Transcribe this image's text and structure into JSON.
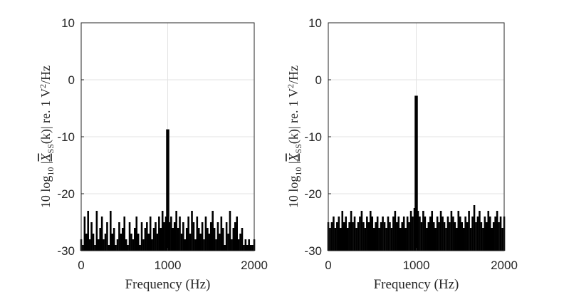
{
  "chart_data": [
    {
      "type": "bar",
      "xlabel": "Frequency (Hz)",
      "ylabel": "10 log10 |X_SS(k)| re. 1 V²/Hz",
      "xlim": [
        0,
        2000
      ],
      "ylim": [
        -30,
        10
      ],
      "xticks": [
        "0",
        "1000",
        "2000"
      ],
      "yticks": [
        "-30",
        "-20",
        "-10",
        "0",
        "10"
      ],
      "grid": true,
      "peak": {
        "x": 1000,
        "y": -8.7
      },
      "noise_floor": [
        -30,
        -23
      ],
      "series": [
        {
          "x": [
            0,
            20,
            40,
            60,
            80,
            100,
            120,
            140,
            160,
            180,
            200,
            220,
            240,
            260,
            280,
            300,
            320,
            340,
            360,
            380,
            400,
            420,
            440,
            460,
            480,
            500,
            520,
            540,
            560,
            580,
            600,
            620,
            640,
            660,
            680,
            700,
            720,
            740,
            760,
            780,
            800,
            820,
            840,
            860,
            880,
            900,
            920,
            940,
            960,
            980,
            1000,
            1020,
            1040,
            1060,
            1080,
            1100,
            1120,
            1140,
            1160,
            1180,
            1200,
            1220,
            1240,
            1260,
            1280,
            1300,
            1320,
            1340,
            1360,
            1380,
            1400,
            1420,
            1440,
            1460,
            1480,
            1500,
            1520,
            1540,
            1560,
            1580,
            1600,
            1620,
            1640,
            1660,
            1680,
            1700,
            1720,
            1740,
            1760,
            1780,
            1800,
            1820,
            1840,
            1860,
            1880,
            1900,
            1920,
            1940,
            1960,
            1980,
            2000
          ],
          "values": [
            -28,
            -29,
            -24,
            -27,
            -23,
            -28,
            -25,
            -27,
            -29,
            -23,
            -28,
            -26,
            -24,
            -28,
            -27,
            -25,
            -29,
            -23,
            -27,
            -26,
            -29,
            -28,
            -25,
            -27,
            -26,
            -24,
            -28,
            -29,
            -25,
            -27,
            -28,
            -26,
            -24,
            -27,
            -29,
            -25,
            -28,
            -26,
            -25,
            -27,
            -24,
            -28,
            -26,
            -25,
            -27,
            -24,
            -26,
            -23,
            -25,
            -24,
            -8.7,
            -25,
            -24,
            -26,
            -25,
            -23,
            -26,
            -24,
            -27,
            -25,
            -28,
            -26,
            -24,
            -27,
            -23,
            -25,
            -28,
            -24,
            -26,
            -27,
            -25,
            -28,
            -24,
            -26,
            -27,
            -25,
            -23,
            -26,
            -28,
            -25,
            -27,
            -24,
            -26,
            -29,
            -25,
            -27,
            -23,
            -28,
            -26,
            -25,
            -24,
            -28,
            -27,
            -26,
            -29,
            -28,
            -29,
            -28,
            -29,
            -29,
            -28
          ]
        }
      ]
    },
    {
      "type": "bar",
      "xlabel": "Frequency (Hz)",
      "ylabel": "10 log10 |X_SS(k)| re. 1 V²/Hz",
      "xlim": [
        0,
        2000
      ],
      "ylim": [
        -30,
        10
      ],
      "xticks": [
        "0",
        "1000",
        "2000"
      ],
      "yticks": [
        "-30",
        "-20",
        "-10",
        "0",
        "10"
      ],
      "grid": true,
      "peak": {
        "x": 1000,
        "y": -2.8
      },
      "noise_floor": [
        -30,
        -22
      ],
      "series": [
        {
          "x": [
            0,
            20,
            40,
            60,
            80,
            100,
            120,
            140,
            160,
            180,
            200,
            220,
            240,
            260,
            280,
            300,
            320,
            340,
            360,
            380,
            400,
            420,
            440,
            460,
            480,
            500,
            520,
            540,
            560,
            580,
            600,
            620,
            640,
            660,
            680,
            700,
            720,
            740,
            760,
            780,
            800,
            820,
            840,
            860,
            880,
            900,
            920,
            940,
            960,
            980,
            1000,
            1020,
            1040,
            1060,
            1080,
            1100,
            1120,
            1140,
            1160,
            1180,
            1200,
            1220,
            1240,
            1260,
            1280,
            1300,
            1320,
            1340,
            1360,
            1380,
            1400,
            1420,
            1440,
            1460,
            1480,
            1500,
            1520,
            1540,
            1560,
            1580,
            1600,
            1620,
            1640,
            1660,
            1680,
            1700,
            1720,
            1740,
            1760,
            1780,
            1800,
            1820,
            1840,
            1860,
            1880,
            1900,
            1920,
            1940,
            1960,
            1980,
            2000
          ],
          "values": [
            -25,
            -26,
            -25,
            -24,
            -26,
            -25,
            -24,
            -26,
            -23,
            -25,
            -24,
            -26,
            -25,
            -23,
            -25,
            -24,
            -26,
            -25,
            -24,
            -23,
            -25,
            -26,
            -24,
            -25,
            -23,
            -24,
            -26,
            -25,
            -24,
            -26,
            -25,
            -24,
            -25,
            -26,
            -24,
            -25,
            -26,
            -24,
            -23,
            -25,
            -24,
            -26,
            -25,
            -24,
            -26,
            -24,
            -25,
            -23,
            -24,
            -22.5,
            -2.8,
            -23,
            -24,
            -25,
            -23,
            -24,
            -26,
            -25,
            -24,
            -23,
            -25,
            -26,
            -24,
            -25,
            -23,
            -24,
            -25,
            -26,
            -24,
            -25,
            -23,
            -24,
            -25,
            -26,
            -23,
            -24,
            -25,
            -26,
            -24,
            -25,
            -23,
            -26,
            -24,
            -22,
            -25,
            -24,
            -23,
            -25,
            -26,
            -24,
            -25,
            -23,
            -24,
            -26,
            -25,
            -24,
            -23,
            -25,
            -24,
            -26,
            -24
          ]
        }
      ]
    }
  ]
}
